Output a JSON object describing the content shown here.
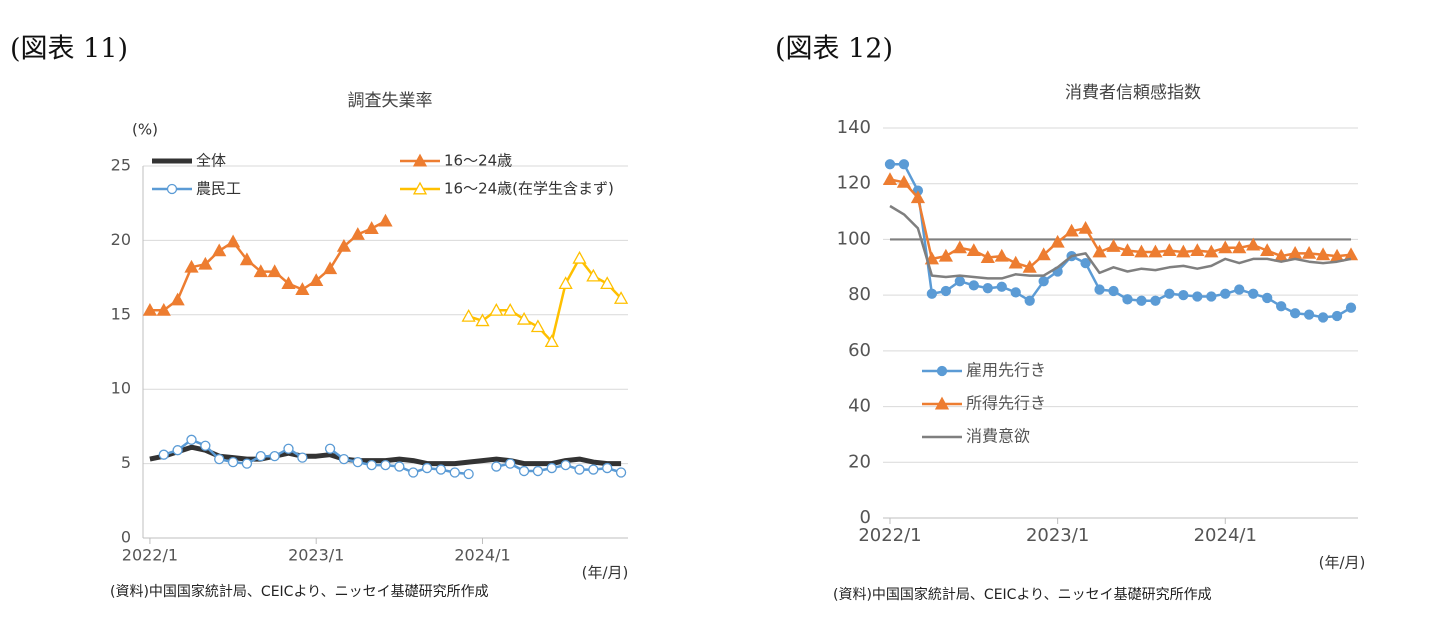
{
  "chart_data": [
    {
      "type": "line",
      "figure_label": "(図表 11)",
      "title": "調査失業率",
      "y_unit": "(%)",
      "x_unit": "(年/月)",
      "source": "(資料)中国国家統計局、CEICより、ニッセイ基礎研究所作成",
      "categories": [
        "2022/1",
        null,
        null,
        null,
        null,
        null,
        null,
        null,
        null,
        null,
        null,
        null,
        "2023/1",
        null,
        null,
        null,
        null,
        null,
        null,
        null,
        null,
        null,
        null,
        null,
        "2024/1",
        null,
        null,
        null,
        null,
        null,
        null,
        null,
        null,
        null,
        null
      ],
      "ylim": [
        0,
        25
      ],
      "yticks": [
        0,
        5,
        10,
        15,
        20,
        25
      ],
      "grid": true,
      "legend": "top",
      "series": [
        {
          "name": "全体",
          "color": "#333333",
          "marker": "none",
          "values": [
            5.3,
            5.5,
            5.8,
            6.1,
            5.9,
            5.5,
            5.4,
            5.3,
            5.3,
            5.5,
            5.7,
            5.5,
            5.5,
            5.6,
            5.3,
            5.2,
            5.2,
            5.2,
            5.3,
            5.2,
            5.0,
            5.0,
            5.0,
            5.1,
            5.2,
            5.3,
            5.2,
            5.0,
            5.0,
            5.0,
            5.2,
            5.3,
            5.1,
            5.0,
            5.0
          ]
        },
        {
          "name": "16～24歳",
          "color": "#ed7d31",
          "marker": "filled-triangle",
          "values": [
            15.3,
            15.3,
            16.0,
            18.2,
            18.4,
            19.3,
            19.9,
            18.7,
            17.9,
            17.9,
            17.1,
            16.7,
            17.3,
            18.1,
            19.6,
            20.4,
            20.8,
            21.3,
            null,
            null,
            null,
            null,
            null,
            null,
            null,
            null,
            null,
            null,
            null,
            null,
            null,
            null,
            null,
            null,
            null
          ]
        },
        {
          "name": "農民工",
          "color": "#5b9bd5",
          "marker": "open-circle",
          "values": [
            null,
            5.6,
            5.9,
            6.6,
            6.2,
            5.3,
            5.1,
            5.0,
            5.5,
            5.5,
            6.0,
            5.4,
            null,
            6.0,
            5.3,
            5.1,
            4.9,
            4.9,
            4.8,
            4.4,
            4.7,
            4.6,
            4.4,
            4.3,
            null,
            4.8,
            5.0,
            4.5,
            4.5,
            4.7,
            4.9,
            4.6,
            4.6,
            4.7,
            4.4
          ]
        },
        {
          "name": "16～24歳(在学生含まず)",
          "color": "#ffc000",
          "marker": "open-triangle",
          "values": [
            null,
            null,
            null,
            null,
            null,
            null,
            null,
            null,
            null,
            null,
            null,
            null,
            null,
            null,
            null,
            null,
            null,
            null,
            null,
            null,
            null,
            null,
            null,
            14.9,
            14.6,
            15.3,
            15.3,
            14.7,
            14.2,
            13.2,
            17.1,
            18.8,
            17.6,
            17.1,
            16.1
          ]
        }
      ]
    },
    {
      "type": "line",
      "figure_label": "(図表 12)",
      "title": "消費者信頼感指数",
      "x_unit": "(年/月)",
      "source": "(資料)中国国家統計局、CEICより、ニッセイ基礎研究所作成",
      "categories": [
        "2022/1",
        null,
        null,
        null,
        null,
        null,
        null,
        null,
        null,
        null,
        null,
        null,
        "2023/1",
        null,
        null,
        null,
        null,
        null,
        null,
        null,
        null,
        null,
        null,
        null,
        "2024/1",
        null,
        null,
        null,
        null,
        null,
        null,
        null,
        null,
        null
      ],
      "ylim": [
        0,
        140
      ],
      "yticks": [
        0,
        20,
        40,
        60,
        80,
        100,
        120,
        140
      ],
      "grid": true,
      "legend": "lower left",
      "reference_line": 100,
      "reference_color": "#7f7f7f",
      "series": [
        {
          "name": "雇用先行き",
          "color": "#5b9bd5",
          "marker": "filled-circle",
          "values": [
            127,
            127,
            117.5,
            80.5,
            81.5,
            85,
            83.5,
            82.5,
            83,
            81,
            78,
            85,
            88.5,
            94,
            91.5,
            82,
            81.5,
            78.5,
            78,
            78,
            80.5,
            80,
            79.5,
            79.5,
            80.5,
            82,
            80.5,
            79,
            76,
            73.5,
            73,
            72,
            72.5,
            75.5
          ]
        },
        {
          "name": "所得先行き",
          "color": "#ed7d31",
          "marker": "filled-triangle",
          "values": [
            121.5,
            120.5,
            115,
            93,
            94,
            97,
            96,
            93.5,
            94,
            91.5,
            90,
            94.5,
            99,
            103,
            104,
            95.5,
            97.5,
            96,
            95.5,
            95.5,
            96,
            95.5,
            96,
            95.5,
            97,
            97,
            98,
            96,
            94,
            95,
            95,
            94.5,
            94,
            94.5
          ]
        },
        {
          "name": "消費意欲",
          "color": "#7f7f7f",
          "marker": "none",
          "values": [
            112,
            109,
            104,
            87,
            86.5,
            87,
            86.5,
            86,
            86,
            87.5,
            87,
            87,
            90,
            94,
            95,
            88,
            90,
            88.5,
            89.5,
            89,
            90,
            90.5,
            89.5,
            90.5,
            93,
            91.5,
            93,
            93,
            92,
            93,
            92,
            91.5,
            92,
            93
          ]
        }
      ]
    }
  ]
}
